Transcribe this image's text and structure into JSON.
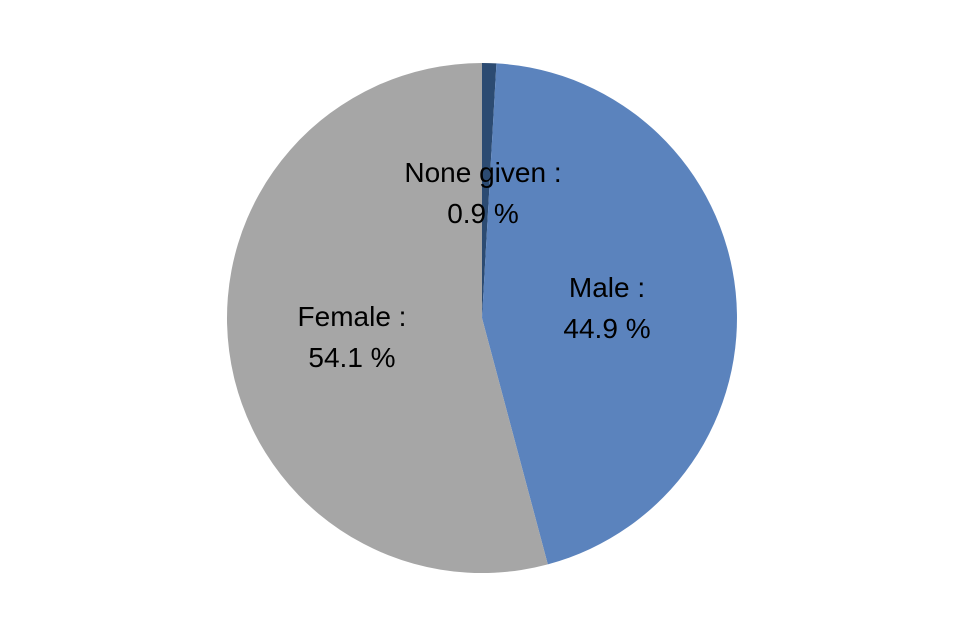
{
  "chart_data": {
    "type": "pie",
    "title": "",
    "background": "#FFFFFF",
    "legend": "none",
    "start_angle_deg": 0,
    "direction": "clockwise",
    "categories": [
      "None given",
      "Male",
      "Female"
    ],
    "values": [
      0.9,
      44.9,
      54.1
    ],
    "slices": [
      {
        "name": "None given",
        "value": 0.9,
        "color": "#2C4B72",
        "label": "None given :",
        "value_label": "0.9 %"
      },
      {
        "name": "Male",
        "value": 44.9,
        "color": "#5B83BD",
        "label": "Male :",
        "value_label": "44.9 %"
      },
      {
        "name": "Female",
        "value": 54.1,
        "color": "#A6A6A6",
        "label": "Female :",
        "value_label": "54.1 %"
      }
    ],
    "label_text_color": "#000000"
  }
}
